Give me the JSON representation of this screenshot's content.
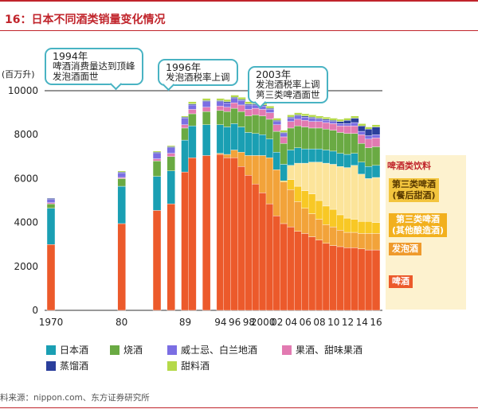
{
  "header": {
    "title": "16：日本不同酒类销量变化情况"
  },
  "source": "料来源：nippon.com、东方证券研究所",
  "chart_data": {
    "type": "bar",
    "stacked": true,
    "ylabel": "(百万升)",
    "ylim": [
      0,
      10000
    ],
    "yticks": [
      "0",
      "2000",
      "4000",
      "6000",
      "8000",
      "10000"
    ],
    "reference_line": 10000,
    "x_tick_labels": [
      "1970",
      "80",
      "89",
      "94",
      "96",
      "98",
      "2000",
      "02",
      "04",
      "06",
      "08",
      "10",
      "12",
      "14",
      "16"
    ],
    "categories": [
      "1970",
      "1980",
      "1985",
      "1987",
      "1989",
      "1990",
      "1992",
      "1994",
      "1995",
      "1996",
      "1997",
      "1998",
      "1999",
      "2000",
      "2001",
      "2002",
      "2003",
      "2004",
      "2005",
      "2006",
      "2007",
      "2008",
      "2009",
      "2010",
      "2011",
      "2012",
      "2013",
      "2014",
      "2015",
      "2016"
    ],
    "series": [
      {
        "name": "啤酒",
        "color": "#ec5a2b",
        "values": [
          3000,
          3950,
          4550,
          4850,
          6300,
          6950,
          7050,
          7100,
          6950,
          6950,
          6550,
          6150,
          5750,
          5350,
          4850,
          4300,
          3950,
          3800,
          3600,
          3500,
          3350,
          3200,
          3050,
          2950,
          2900,
          2850,
          2850,
          2800,
          2750,
          2750
        ]
      },
      {
        "name": "发泡酒",
        "color": "#f2a33a",
        "values": [
          0,
          0,
          0,
          0,
          0,
          0,
          0,
          50,
          150,
          350,
          650,
          900,
          1300,
          1700,
          2100,
          2100,
          1900,
          1700,
          1350,
          1150,
          1050,
          950,
          850,
          850,
          750,
          700,
          700,
          700,
          750,
          750
        ]
      },
      {
        "name": "第三类啤酒(其他酿造酒)",
        "color": "#f8c825",
        "values": [
          0,
          0,
          0,
          0,
          0,
          0,
          0,
          0,
          0,
          0,
          0,
          0,
          0,
          0,
          0,
          0,
          50,
          450,
          700,
          800,
          900,
          850,
          850,
          800,
          700,
          650,
          600,
          550,
          550,
          500
        ]
      },
      {
        "name": "第三类啤酒(餐后甜酒)",
        "color": "#fce49a",
        "values": [
          0,
          0,
          0,
          0,
          0,
          0,
          0,
          0,
          0,
          0,
          0,
          0,
          0,
          0,
          0,
          0,
          0,
          650,
          1050,
          1250,
          1450,
          1750,
          1950,
          2050,
          2200,
          2300,
          2450,
          2150,
          1950,
          2050
        ]
      },
      {
        "name": "日本酒",
        "color": "#1a9fb3",
        "values": [
          1650,
          1700,
          1550,
          1500,
          1450,
          1450,
          1400,
          1300,
          1250,
          1200,
          1150,
          1050,
          1000,
          950,
          850,
          800,
          750,
          700,
          700,
          650,
          600,
          600,
          600,
          600,
          600,
          600,
          550,
          550,
          550,
          550
        ]
      },
      {
        "name": "烧酒",
        "color": "#6aaa43",
        "values": [
          200,
          350,
          700,
          650,
          550,
          550,
          600,
          650,
          700,
          700,
          700,
          750,
          850,
          850,
          900,
          950,
          950,
          1000,
          1000,
          1000,
          950,
          950,
          950,
          950,
          950,
          950,
          900,
          850,
          850,
          850
        ]
      },
      {
        "name": "果酒、甜味果酒",
        "color": "#e27ab1",
        "values": [
          50,
          50,
          100,
          150,
          150,
          200,
          200,
          200,
          200,
          250,
          300,
          300,
          300,
          300,
          300,
          300,
          300,
          300,
          300,
          300,
          300,
          300,
          300,
          300,
          300,
          350,
          350,
          400,
          400,
          400
        ]
      },
      {
        "name": "威士忌、白兰地酒",
        "color": "#7b6ee3",
        "values": [
          150,
          200,
          250,
          250,
          300,
          200,
          250,
          200,
          200,
          200,
          200,
          200,
          150,
          150,
          150,
          150,
          150,
          150,
          150,
          150,
          150,
          100,
          100,
          100,
          100,
          100,
          150,
          150,
          150,
          150
        ]
      },
      {
        "name": "蒸馏酒",
        "color": "#2b3f9c",
        "values": [
          50,
          50,
          50,
          50,
          50,
          50,
          50,
          50,
          50,
          50,
          50,
          50,
          50,
          50,
          50,
          50,
          50,
          50,
          50,
          50,
          50,
          50,
          50,
          50,
          100,
          150,
          200,
          250,
          300,
          350
        ]
      },
      {
        "name": "甜料酒",
        "color": "#b5d94a",
        "values": [
          0,
          50,
          50,
          50,
          50,
          100,
          100,
          100,
          100,
          100,
          100,
          100,
          100,
          100,
          100,
          100,
          100,
          100,
          100,
          100,
          100,
          100,
          100,
          100,
          100,
          100,
          100,
          100,
          100,
          100
        ]
      }
    ]
  },
  "annotations": {
    "a1994": {
      "year": "1994年",
      "line1": "啤酒消费量达到顶峰",
      "line2": "发泡酒面世"
    },
    "a1996": {
      "year": "1996年",
      "line1": "发泡酒税率上调"
    },
    "a2003": {
      "year": "2003年",
      "line1": "发泡酒税率上调",
      "line2": "第三类啤酒面世"
    }
  },
  "beverage_panel": {
    "heading": "啤酒类饮料",
    "labels": {
      "dessert": "第三类啤酒\n(餐后甜酒)",
      "other": "第三类啤酒\n(其他酿造酒)",
      "happoshu": "发泡酒",
      "beer": "啤酒"
    }
  },
  "legend": {
    "sake": "日本酒",
    "shochu": "烧酒",
    "whisky": "威士忌、白兰地酒",
    "fruit": "果酒、甜味果酒",
    "spirits": "蒸馏酒",
    "mirin": "甜料酒"
  },
  "colors": {
    "accent": "#c0242b",
    "callout_border": "#49b3c3",
    "panel_bg": "#fdf2cf"
  }
}
